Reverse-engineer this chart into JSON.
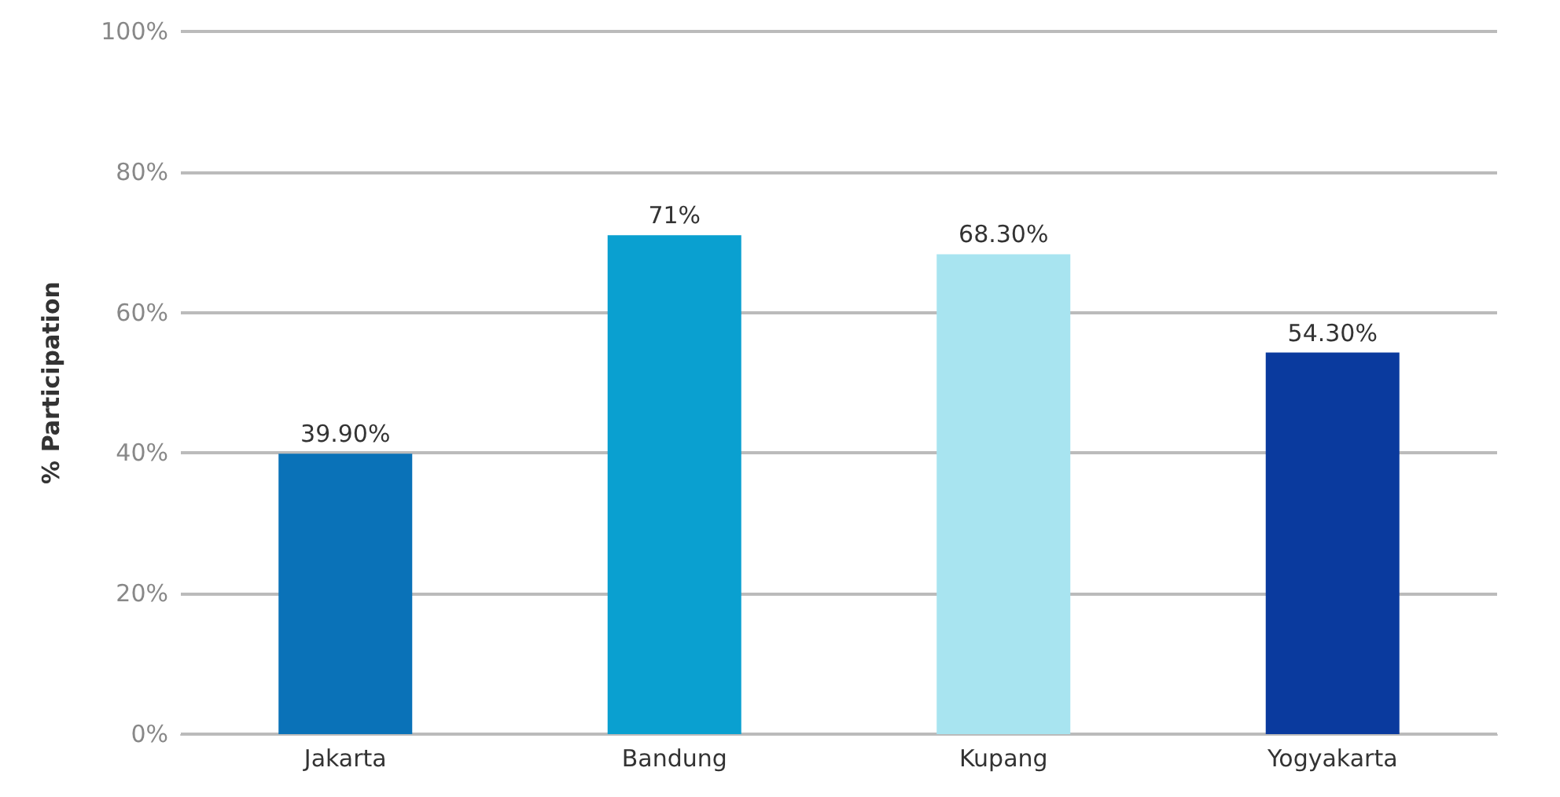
{
  "chart_data": {
    "type": "bar",
    "ylabel": "% Participation",
    "categories": [
      "Jakarta",
      "Bandung",
      "Kupang",
      "Yogyakarta"
    ],
    "values": [
      39.9,
      71,
      68.3,
      54.3
    ],
    "colors": [
      "#0a72b8",
      "#0aa0d0",
      "#a8e4f0",
      "#0a3a9e"
    ],
    "value_labels": [
      "39.90%",
      "71%",
      "68.30%",
      "54.30%"
    ],
    "ylim": [
      0,
      100
    ],
    "yticks": [
      {
        "value": 0,
        "label": "0%"
      },
      {
        "value": 20,
        "label": "20%"
      },
      {
        "value": 40,
        "label": "40%"
      },
      {
        "value": 60,
        "label": "60%"
      },
      {
        "value": 80,
        "label": "80%"
      },
      {
        "value": 100,
        "label": "100%"
      }
    ],
    "grid": "y"
  }
}
